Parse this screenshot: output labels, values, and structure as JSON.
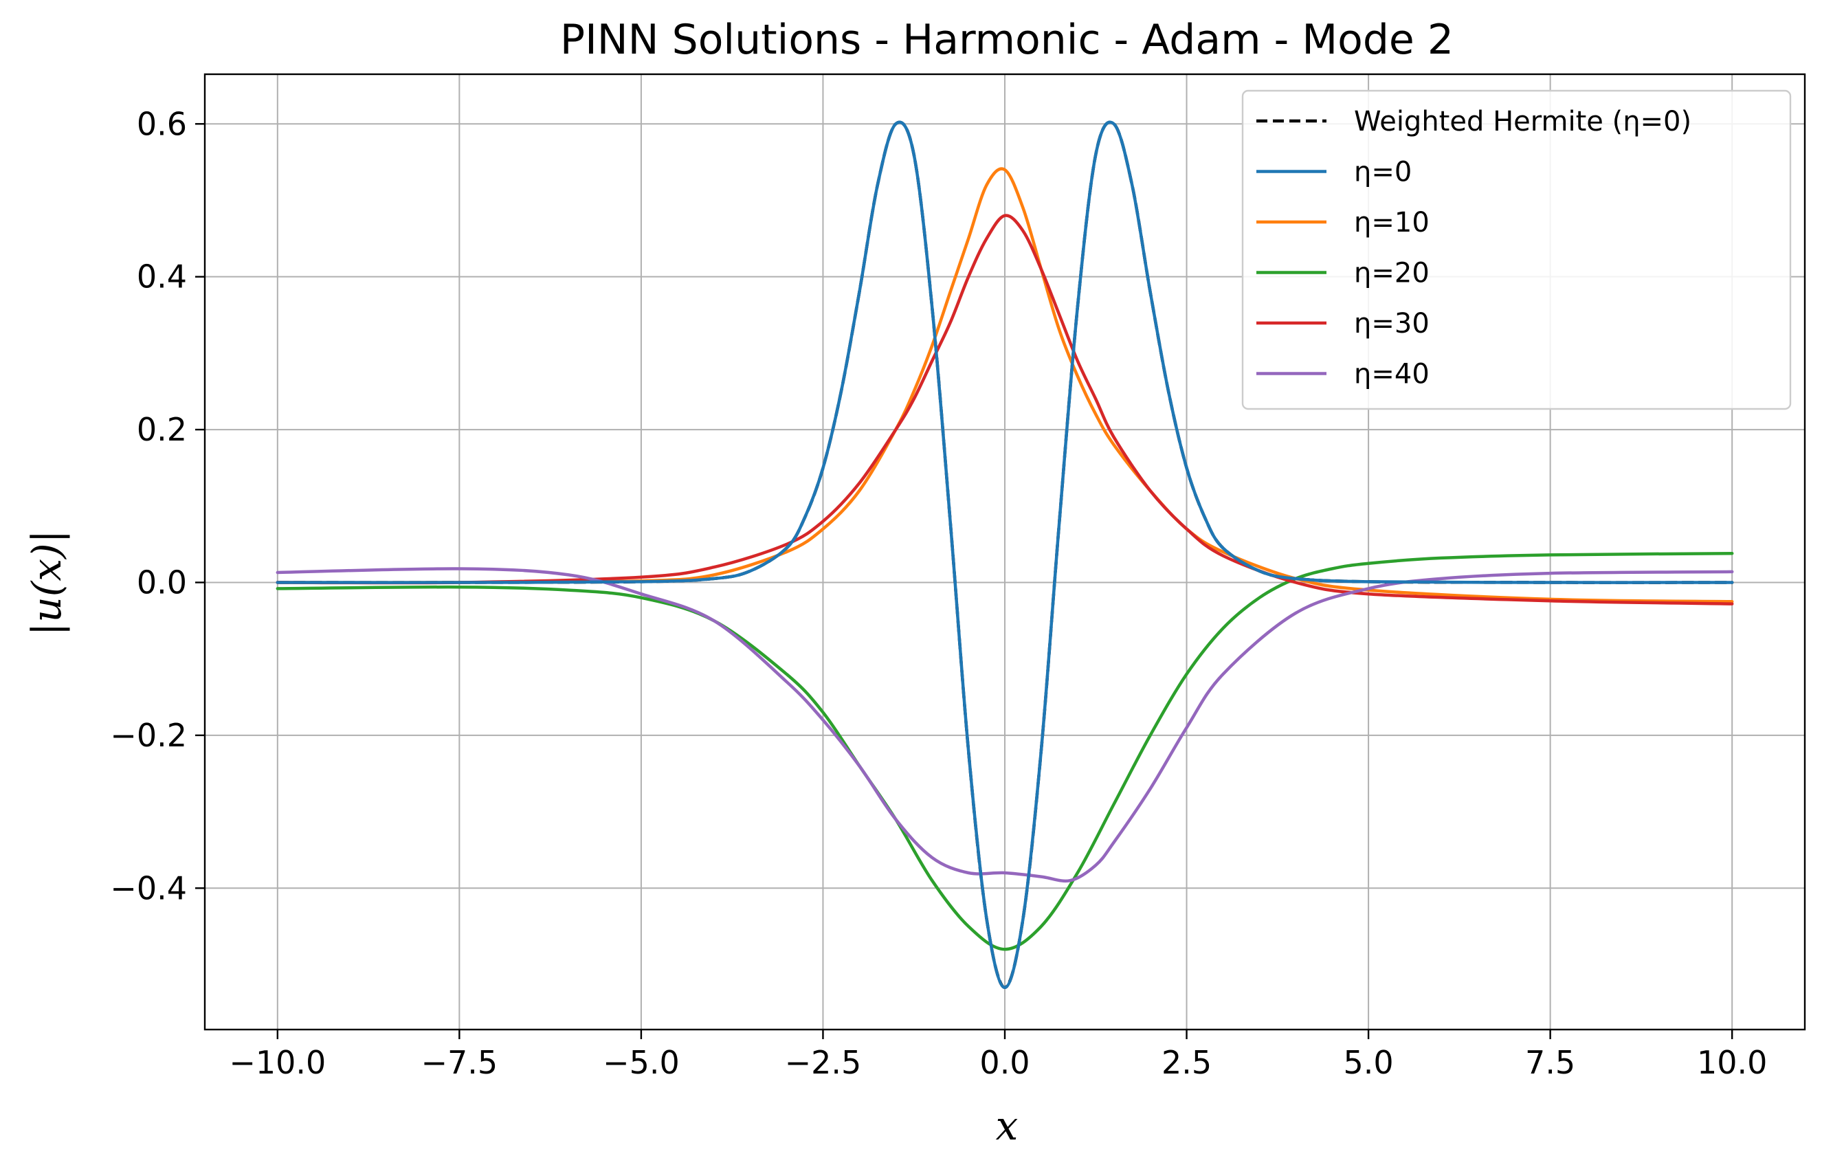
{
  "chart_data": {
    "type": "line",
    "title": "PINN Solutions - Harmonic - Adam - Mode 2",
    "xlabel": "x",
    "ylabel": "|u(x)|",
    "xlim": [
      -11,
      11
    ],
    "ylim": [
      -0.585,
      0.665
    ],
    "xticks": [
      -10,
      -7.5,
      -5,
      -2.5,
      0,
      2.5,
      5,
      7.5,
      10
    ],
    "xtick_labels": [
      "−10.0",
      "−7.5",
      "−5.0",
      "−2.5",
      "0.0",
      "2.5",
      "5.0",
      "7.5",
      "10.0"
    ],
    "yticks": [
      -0.4,
      -0.2,
      0.0,
      0.2,
      0.4,
      0.6
    ],
    "ytick_labels": [
      "−0.4",
      "−0.2",
      "0.0",
      "0.2",
      "0.4",
      "0.6"
    ],
    "grid": true,
    "legend_position": "top-right",
    "series": [
      {
        "name": "Weighted Hermite (η=0)",
        "color": "#000000",
        "dashed": true,
        "x": [
          -10,
          -7.5,
          -5,
          -4,
          -3.5,
          -3,
          -2.75,
          -2.5,
          -2.25,
          -2,
          -1.75,
          -1.5,
          -1.25,
          -1,
          -0.75,
          -0.5,
          -0.25,
          0,
          0.25,
          0.5,
          0.75,
          1,
          1.25,
          1.5,
          1.75,
          2,
          2.25,
          2.5,
          2.75,
          3,
          3.5,
          4,
          5,
          7.5,
          10
        ],
        "y": [
          0,
          0,
          0.001,
          0.005,
          0.015,
          0.045,
          0.085,
          0.15,
          0.25,
          0.38,
          0.52,
          0.6,
          0.56,
          0.36,
          0.08,
          -0.22,
          -0.44,
          -0.53,
          -0.44,
          -0.22,
          0.08,
          0.36,
          0.56,
          0.6,
          0.52,
          0.38,
          0.25,
          0.15,
          0.085,
          0.045,
          0.015,
          0.005,
          0.001,
          0,
          0
        ]
      },
      {
        "name": "η=0",
        "color": "#1f77b4",
        "dashed": false,
        "x": [
          -10,
          -7.5,
          -5,
          -4,
          -3.5,
          -3,
          -2.75,
          -2.5,
          -2.25,
          -2,
          -1.75,
          -1.5,
          -1.25,
          -1,
          -0.75,
          -0.5,
          -0.25,
          0,
          0.25,
          0.5,
          0.75,
          1,
          1.25,
          1.5,
          1.75,
          2,
          2.25,
          2.5,
          2.75,
          3,
          3.5,
          4,
          5,
          7.5,
          10
        ],
        "y": [
          0,
          0,
          0.001,
          0.005,
          0.015,
          0.045,
          0.085,
          0.15,
          0.25,
          0.38,
          0.52,
          0.6,
          0.56,
          0.36,
          0.08,
          -0.22,
          -0.44,
          -0.53,
          -0.44,
          -0.22,
          0.08,
          0.36,
          0.56,
          0.6,
          0.52,
          0.38,
          0.25,
          0.15,
          0.085,
          0.045,
          0.015,
          0.005,
          0.001,
          0,
          0
        ]
      },
      {
        "name": "η=10",
        "color": "#ff7f0e",
        "dashed": false,
        "x": [
          -10,
          -7.5,
          -5,
          -4,
          -3,
          -2.5,
          -2,
          -1.5,
          -1.25,
          -1,
          -0.75,
          -0.5,
          -0.25,
          0,
          0.25,
          0.5,
          0.75,
          1,
          1.25,
          1.5,
          2,
          2.5,
          3,
          4,
          5,
          7.5,
          10
        ],
        "y": [
          0,
          0,
          0.002,
          0.01,
          0.04,
          0.07,
          0.12,
          0.2,
          0.25,
          0.31,
          0.38,
          0.45,
          0.52,
          0.54,
          0.49,
          0.41,
          0.33,
          0.27,
          0.22,
          0.18,
          0.12,
          0.07,
          0.04,
          0.005,
          -0.01,
          -0.022,
          -0.025
        ]
      },
      {
        "name": "η=20",
        "color": "#2ca02c",
        "dashed": false,
        "x": [
          -10,
          -7.5,
          -6,
          -5,
          -4,
          -3,
          -2.5,
          -2,
          -1.5,
          -1,
          -0.5,
          0,
          0.5,
          1,
          1.5,
          2,
          2.5,
          3,
          3.5,
          4,
          4.5,
          5,
          6,
          7.5,
          10
        ],
        "y": [
          -0.008,
          -0.006,
          -0.01,
          -0.02,
          -0.05,
          -0.12,
          -0.17,
          -0.24,
          -0.31,
          -0.39,
          -0.45,
          -0.48,
          -0.45,
          -0.38,
          -0.29,
          -0.2,
          -0.12,
          -0.06,
          -0.02,
          0.005,
          0.018,
          0.025,
          0.032,
          0.036,
          0.038
        ]
      },
      {
        "name": "η=30",
        "color": "#d62728",
        "dashed": false,
        "x": [
          -10,
          -7.5,
          -5,
          -4,
          -3,
          -2.5,
          -2,
          -1.5,
          -1.25,
          -1,
          -0.75,
          -0.5,
          -0.25,
          0,
          0.25,
          0.5,
          0.75,
          1,
          1.25,
          1.5,
          2,
          2.5,
          3,
          4,
          5,
          7.5,
          10
        ],
        "y": [
          0,
          0,
          0.007,
          0.02,
          0.05,
          0.08,
          0.13,
          0.2,
          0.24,
          0.29,
          0.34,
          0.4,
          0.45,
          0.48,
          0.46,
          0.41,
          0.35,
          0.29,
          0.24,
          0.19,
          0.12,
          0.07,
          0.035,
          0,
          -0.015,
          -0.024,
          -0.028
        ]
      },
      {
        "name": "η=40",
        "color": "#9467bd",
        "dashed": false,
        "x": [
          -10,
          -7.5,
          -6,
          -5,
          -4,
          -3,
          -2.5,
          -2,
          -1.5,
          -1,
          -0.5,
          0,
          0.5,
          0.9,
          1.25,
          1.5,
          2,
          2.5,
          3,
          4,
          5,
          6,
          7.5,
          10
        ],
        "y": [
          0.013,
          0.018,
          0.01,
          -0.015,
          -0.05,
          -0.13,
          -0.18,
          -0.24,
          -0.31,
          -0.36,
          -0.38,
          -0.38,
          -0.385,
          -0.39,
          -0.37,
          -0.34,
          -0.27,
          -0.19,
          -0.12,
          -0.04,
          -0.008,
          0.005,
          0.012,
          0.014
        ]
      }
    ]
  }
}
